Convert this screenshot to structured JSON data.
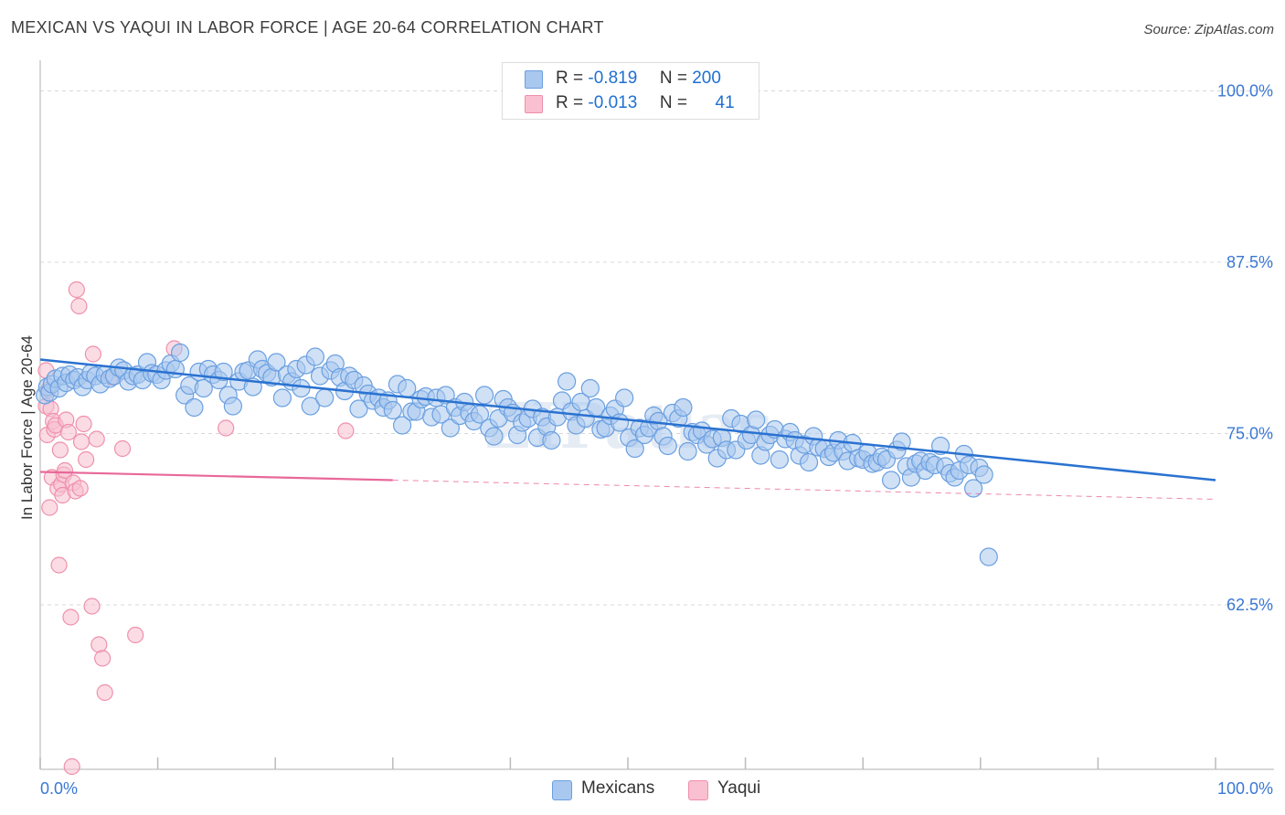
{
  "title": "MEXICAN VS YAQUI IN LABOR FORCE | AGE 20-64 CORRELATION CHART",
  "source": "Source: ZipAtlas.com",
  "colors": {
    "mexicans_fill": "#a9c8ef",
    "mexicans_stroke": "#6a9fe0",
    "mexicans_line": "#2a72d1",
    "yaqui_fill": "#f8c0d0",
    "yaqui_stroke": "#ef8fab",
    "yaqui_line": "#e8689a",
    "tick_text": "#3a78d4",
    "grid": "#d8d8d8"
  },
  "legend": {
    "rows": [
      {
        "r_label": "R =",
        "r_value": "-0.819",
        "n_label": "N =",
        "n_value": "200"
      },
      {
        "r_label": "R =",
        "r_value": "-0.013",
        "n_label": "N =",
        "n_value": "41"
      }
    ],
    "bottom": [
      "Mexicans",
      "Yaqui"
    ]
  },
  "chart_data": {
    "type": "scatter",
    "xlabel": "",
    "ylabel": "In Labor Force | Age 20-64",
    "xlim": [
      0,
      100
    ],
    "ylim": [
      50.5,
      101.5
    ],
    "x_tick_labels": [
      "0.0%",
      "100.0%"
    ],
    "y_ticks": [
      62.5,
      75.0,
      87.5,
      100.0
    ],
    "y_tick_labels": [
      "62.5%",
      "75.0%",
      "87.5%",
      "100.0%"
    ],
    "grid": true,
    "legend_position": "top-center",
    "series": [
      {
        "name": "Mexicans",
        "trendline": {
          "x": [
            0,
            100
          ],
          "y": [
            80.4,
            71.6
          ]
        },
        "points": [
          [
            0.4,
            77.8
          ],
          [
            0.6,
            78.4
          ],
          [
            0.8,
            78.0
          ],
          [
            1.0,
            78.6
          ],
          [
            1.3,
            79.0
          ],
          [
            1.6,
            78.3
          ],
          [
            1.9,
            79.2
          ],
          [
            2.2,
            78.7
          ],
          [
            2.5,
            79.3
          ],
          [
            2.9,
            78.9
          ],
          [
            3.2,
            79.1
          ],
          [
            3.6,
            78.4
          ],
          [
            4.0,
            78.9
          ],
          [
            4.3,
            79.4
          ],
          [
            4.7,
            79.2
          ],
          [
            5.1,
            78.6
          ],
          [
            5.5,
            79.3
          ],
          [
            5.9,
            79.0
          ],
          [
            6.3,
            79.2
          ],
          [
            6.7,
            79.8
          ],
          [
            7.1,
            79.6
          ],
          [
            7.5,
            78.8
          ],
          [
            7.9,
            79.2
          ],
          [
            8.3,
            79.3
          ],
          [
            8.7,
            78.9
          ],
          [
            9.1,
            80.2
          ],
          [
            9.5,
            79.4
          ],
          [
            9.9,
            79.3
          ],
          [
            10.3,
            78.9
          ],
          [
            10.7,
            79.6
          ],
          [
            11.1,
            80.1
          ],
          [
            11.5,
            79.7
          ],
          [
            11.9,
            80.9
          ],
          [
            12.3,
            77.8
          ],
          [
            12.7,
            78.5
          ],
          [
            13.1,
            76.9
          ],
          [
            13.5,
            79.5
          ],
          [
            13.9,
            78.3
          ],
          [
            14.3,
            79.7
          ],
          [
            14.7,
            79.3
          ],
          [
            15.2,
            78.9
          ],
          [
            15.6,
            79.5
          ],
          [
            16.0,
            77.8
          ],
          [
            16.4,
            77.0
          ],
          [
            16.9,
            78.8
          ],
          [
            17.3,
            79.5
          ],
          [
            17.7,
            79.6
          ],
          [
            18.1,
            78.4
          ],
          [
            18.5,
            80.4
          ],
          [
            18.9,
            79.7
          ],
          [
            19.3,
            79.4
          ],
          [
            19.7,
            79.1
          ],
          [
            20.1,
            80.2
          ],
          [
            20.6,
            77.6
          ],
          [
            21.0,
            79.3
          ],
          [
            21.4,
            78.8
          ],
          [
            21.8,
            79.7
          ],
          [
            22.2,
            78.3
          ],
          [
            22.6,
            80.0
          ],
          [
            23.0,
            77.0
          ],
          [
            23.4,
            80.6
          ],
          [
            23.8,
            79.2
          ],
          [
            24.2,
            77.6
          ],
          [
            24.7,
            79.6
          ],
          [
            25.1,
            80.1
          ],
          [
            25.5,
            79.1
          ],
          [
            25.9,
            78.1
          ],
          [
            26.3,
            79.2
          ],
          [
            26.7,
            78.9
          ],
          [
            27.1,
            76.8
          ],
          [
            27.5,
            78.5
          ],
          [
            27.9,
            77.9
          ],
          [
            28.3,
            77.4
          ],
          [
            28.8,
            77.6
          ],
          [
            29.2,
            76.9
          ],
          [
            29.6,
            77.4
          ],
          [
            30.0,
            76.7
          ],
          [
            30.4,
            78.6
          ],
          [
            30.8,
            75.6
          ],
          [
            31.2,
            78.3
          ],
          [
            31.6,
            76.6
          ],
          [
            32.0,
            76.6
          ],
          [
            32.4,
            77.5
          ],
          [
            32.8,
            77.7
          ],
          [
            33.3,
            76.2
          ],
          [
            33.7,
            77.6
          ],
          [
            34.1,
            76.4
          ],
          [
            34.5,
            77.8
          ],
          [
            34.9,
            75.4
          ],
          [
            35.3,
            76.9
          ],
          [
            35.7,
            76.3
          ],
          [
            36.1,
            77.3
          ],
          [
            36.5,
            76.5
          ],
          [
            36.9,
            75.9
          ],
          [
            37.4,
            76.4
          ],
          [
            37.8,
            77.8
          ],
          [
            38.2,
            75.4
          ],
          [
            38.6,
            74.8
          ],
          [
            39.0,
            76.1
          ],
          [
            39.4,
            77.5
          ],
          [
            39.8,
            76.9
          ],
          [
            40.2,
            76.5
          ],
          [
            40.6,
            74.9
          ],
          [
            41.0,
            75.8
          ],
          [
            41.5,
            76.1
          ],
          [
            41.9,
            76.8
          ],
          [
            42.3,
            74.7
          ],
          [
            42.7,
            76.2
          ],
          [
            43.1,
            75.5
          ],
          [
            43.5,
            74.5
          ],
          [
            44.0,
            76.2
          ],
          [
            44.4,
            77.4
          ],
          [
            44.8,
            78.8
          ],
          [
            45.2,
            76.6
          ],
          [
            45.6,
            75.6
          ],
          [
            46.0,
            77.3
          ],
          [
            46.4,
            76.1
          ],
          [
            46.8,
            78.3
          ],
          [
            47.3,
            76.9
          ],
          [
            47.7,
            75.3
          ],
          [
            48.1,
            75.4
          ],
          [
            48.5,
            76.3
          ],
          [
            48.9,
            76.8
          ],
          [
            49.3,
            75.8
          ],
          [
            49.7,
            77.6
          ],
          [
            50.1,
            74.7
          ],
          [
            50.6,
            73.9
          ],
          [
            51.0,
            75.4
          ],
          [
            51.4,
            74.9
          ],
          [
            51.8,
            75.4
          ],
          [
            52.2,
            76.3
          ],
          [
            52.6,
            75.9
          ],
          [
            53.0,
            74.8
          ],
          [
            53.4,
            74.1
          ],
          [
            53.8,
            76.5
          ],
          [
            54.3,
            76.1
          ],
          [
            54.7,
            76.9
          ],
          [
            55.1,
            73.7
          ],
          [
            55.5,
            75.1
          ],
          [
            55.9,
            74.9
          ],
          [
            56.3,
            75.2
          ],
          [
            56.7,
            74.2
          ],
          [
            57.2,
            74.6
          ],
          [
            57.6,
            73.2
          ],
          [
            58.0,
            74.7
          ],
          [
            58.4,
            73.8
          ],
          [
            58.8,
            76.1
          ],
          [
            59.2,
            73.8
          ],
          [
            59.6,
            75.7
          ],
          [
            60.1,
            74.5
          ],
          [
            60.5,
            74.9
          ],
          [
            60.9,
            76.0
          ],
          [
            61.3,
            73.4
          ],
          [
            61.7,
            74.4
          ],
          [
            62.1,
            74.9
          ],
          [
            62.5,
            75.3
          ],
          [
            62.9,
            73.1
          ],
          [
            63.4,
            74.6
          ],
          [
            63.8,
            75.1
          ],
          [
            64.2,
            74.5
          ],
          [
            64.6,
            73.4
          ],
          [
            65.0,
            74.2
          ],
          [
            65.4,
            72.9
          ],
          [
            65.8,
            74.8
          ],
          [
            66.2,
            74.0
          ],
          [
            66.7,
            73.9
          ],
          [
            67.1,
            73.3
          ],
          [
            67.5,
            73.6
          ],
          [
            67.9,
            74.5
          ],
          [
            68.3,
            73.7
          ],
          [
            68.7,
            73.0
          ],
          [
            69.1,
            74.3
          ],
          [
            69.6,
            73.2
          ],
          [
            70.0,
            73.1
          ],
          [
            70.4,
            73.6
          ],
          [
            70.8,
            72.8
          ],
          [
            71.2,
            72.9
          ],
          [
            71.6,
            73.3
          ],
          [
            72.0,
            73.1
          ],
          [
            72.4,
            71.6
          ],
          [
            72.9,
            73.8
          ],
          [
            73.3,
            74.4
          ],
          [
            73.7,
            72.6
          ],
          [
            74.1,
            71.8
          ],
          [
            74.5,
            72.8
          ],
          [
            74.9,
            73.0
          ],
          [
            75.3,
            72.3
          ],
          [
            75.7,
            72.9
          ],
          [
            76.1,
            72.7
          ],
          [
            76.6,
            74.1
          ],
          [
            77.0,
            72.6
          ],
          [
            77.4,
            72.1
          ],
          [
            77.8,
            71.8
          ],
          [
            78.2,
            72.3
          ],
          [
            78.6,
            73.5
          ],
          [
            79.0,
            72.7
          ],
          [
            79.4,
            71.0
          ],
          [
            79.9,
            72.5
          ],
          [
            80.3,
            72.0
          ],
          [
            80.7,
            66.0
          ]
        ]
      },
      {
        "name": "Yaqui",
        "trendline": {
          "x": [
            0,
            30
          ],
          "y": [
            72.2,
            71.6
          ]
        },
        "trendline_extension": {
          "x": [
            30,
            100
          ],
          "y": [
            71.6,
            70.2
          ]
        },
        "points": [
          [
            0.5,
            79.6
          ],
          [
            0.5,
            77.0
          ],
          [
            0.6,
            74.9
          ],
          [
            0.7,
            78.2
          ],
          [
            0.8,
            69.6
          ],
          [
            0.9,
            76.8
          ],
          [
            1.0,
            71.8
          ],
          [
            1.1,
            75.9
          ],
          [
            1.2,
            75.3
          ],
          [
            1.3,
            75.6
          ],
          [
            1.5,
            71.0
          ],
          [
            1.6,
            65.4
          ],
          [
            1.7,
            73.8
          ],
          [
            1.8,
            71.3
          ],
          [
            1.9,
            70.5
          ],
          [
            2.0,
            72.0
          ],
          [
            2.1,
            72.3
          ],
          [
            2.2,
            76.0
          ],
          [
            2.4,
            75.1
          ],
          [
            2.6,
            61.6
          ],
          [
            2.8,
            71.4
          ],
          [
            3.0,
            70.8
          ],
          [
            3.1,
            85.5
          ],
          [
            3.3,
            84.3
          ],
          [
            3.4,
            71.0
          ],
          [
            3.5,
            74.4
          ],
          [
            3.7,
            75.7
          ],
          [
            3.9,
            73.1
          ],
          [
            4.4,
            62.4
          ],
          [
            4.5,
            80.8
          ],
          [
            4.8,
            74.6
          ],
          [
            5.0,
            59.6
          ],
          [
            5.3,
            58.6
          ],
          [
            5.5,
            56.1
          ],
          [
            6.1,
            79.1
          ],
          [
            7.0,
            73.9
          ],
          [
            8.1,
            60.3
          ],
          [
            11.4,
            81.2
          ],
          [
            15.8,
            75.4
          ],
          [
            26.0,
            75.2
          ],
          [
            2.7,
            50.7
          ]
        ]
      }
    ]
  }
}
